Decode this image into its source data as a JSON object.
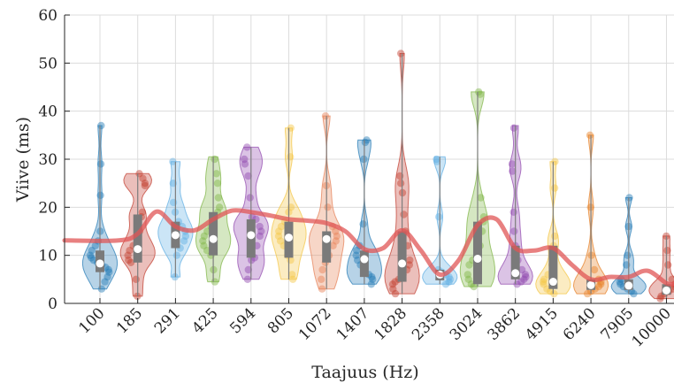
{
  "chart_data": {
    "type": "violin",
    "xlabel": "Taajuus (Hz)",
    "ylabel": "Viive (ms)",
    "ylim": [
      0,
      60
    ],
    "yticks": [
      0,
      10,
      20,
      30,
      40,
      50,
      60
    ],
    "grid": true,
    "categories": [
      "100",
      "185",
      "291",
      "425",
      "594",
      "805",
      "1072",
      "1407",
      "1828",
      "2358",
      "3024",
      "3862",
      "4915",
      "6240",
      "7905",
      "10000"
    ],
    "colors": [
      "#1f77b4",
      "#c0392b",
      "#5dade2",
      "#7cb342",
      "#8e44ad",
      "#f4c542",
      "#e67e52",
      "#1f77b4",
      "#c0392b",
      "#5dade2",
      "#7cb342",
      "#8e44ad",
      "#f4c542",
      "#e67e22",
      "#1f77b4",
      "#c0392b"
    ],
    "median_curve_color": "#e05555",
    "series": [
      {
        "min": 3,
        "q1": 6.5,
        "median": 8.3,
        "q3": 11,
        "max": 37,
        "points": [
          3,
          4.5,
          5.5,
          6.5,
          7,
          7.5,
          8,
          8.5,
          9,
          9.5,
          10,
          11,
          12,
          13,
          15,
          22.5,
          29,
          37
        ]
      },
      {
        "min": 1.5,
        "q1": 8.5,
        "median": 11.3,
        "q3": 18.5,
        "max": 27,
        "points": [
          1.5,
          5,
          8.5,
          9,
          10,
          11,
          12,
          13,
          15,
          18,
          19,
          24.5,
          25,
          26,
          27
        ]
      },
      {
        "min": 5.5,
        "q1": 11.5,
        "median": 14.2,
        "q3": 17,
        "max": 29.5,
        "points": [
          5.5,
          10,
          11.5,
          13,
          14,
          15,
          16,
          17,
          19,
          21,
          25,
          29.5
        ]
      },
      {
        "min": 4.5,
        "q1": 10,
        "median": 13.4,
        "q3": 19,
        "max": 30.5,
        "points": [
          4.5,
          7,
          10,
          11,
          12,
          13,
          14,
          15,
          16,
          18,
          19,
          20,
          22,
          25,
          27,
          30
        ]
      },
      {
        "min": 5,
        "q1": 9.5,
        "median": 14.2,
        "q3": 17.5,
        "max": 32.5,
        "points": [
          5,
          7,
          9,
          9.5,
          12,
          14,
          15,
          16,
          17.5,
          18,
          22,
          26.5,
          29,
          30,
          32.5
        ]
      },
      {
        "min": 5,
        "q1": 9.5,
        "median": 13.7,
        "q3": 17,
        "max": 36.5,
        "points": [
          5,
          6,
          9,
          10,
          12,
          13,
          14,
          15,
          16,
          17,
          19,
          20,
          30.5,
          36.5
        ]
      },
      {
        "min": 3,
        "q1": 8.5,
        "median": 13.4,
        "q3": 15,
        "max": 39,
        "points": [
          3,
          5,
          7,
          8.5,
          10,
          12,
          13,
          14,
          15,
          16,
          20,
          24.5,
          39
        ]
      },
      {
        "min": 4,
        "q1": 5.5,
        "median": 9.2,
        "q3": 11,
        "max": 34,
        "points": [
          4,
          5,
          5.5,
          6,
          7,
          8,
          9,
          10,
          11,
          12,
          16.5,
          30,
          33.5,
          34
        ]
      },
      {
        "min": 2,
        "q1": 4.5,
        "median": 8.3,
        "q3": 15,
        "max": 52,
        "points": [
          2,
          3,
          4,
          4.5,
          5,
          6,
          7,
          8,
          9,
          12,
          15,
          18.5,
          23,
          25,
          26.5,
          52
        ]
      },
      {
        "min": 4,
        "q1": 4.8,
        "median": 6,
        "q3": 7,
        "max": 30.5,
        "points": [
          4,
          4.5,
          5,
          5.5,
          6,
          6.5,
          7,
          18,
          29.5,
          30
        ]
      },
      {
        "min": 3.5,
        "q1": 4,
        "median": 9.3,
        "q3": 17,
        "max": 44,
        "points": [
          3.5,
          4,
          5,
          6,
          8,
          9,
          10,
          12,
          15,
          17,
          18,
          22,
          43.5,
          44
        ]
      },
      {
        "min": 4,
        "q1": 5,
        "median": 6.3,
        "q3": 12,
        "max": 37,
        "points": [
          4,
          4.5,
          5,
          5.5,
          6,
          7,
          9,
          12,
          15,
          19,
          27.5,
          29,
          36.5
        ]
      },
      {
        "min": 2,
        "q1": 3,
        "median": 4.5,
        "q3": 12,
        "max": 29.5,
        "points": [
          2,
          2.5,
          3,
          4,
          4.5,
          5,
          6,
          8,
          12,
          14,
          24,
          29.5
        ]
      },
      {
        "min": 2,
        "q1": 2.8,
        "median": 3.8,
        "q3": 5,
        "max": 35,
        "points": [
          2,
          2.5,
          3,
          3.5,
          4,
          4.5,
          5,
          7,
          10,
          20,
          35
        ]
      },
      {
        "min": 2,
        "q1": 2.8,
        "median": 3.7,
        "q3": 5,
        "max": 22,
        "points": [
          2,
          2.5,
          3,
          3.5,
          4,
          4.5,
          5,
          8,
          10,
          16,
          22
        ]
      },
      {
        "min": 1,
        "q1": 1.8,
        "median": 2.7,
        "q3": 4,
        "max": 14,
        "points": [
          1,
          1.5,
          2,
          2.5,
          3,
          3.5,
          4,
          5,
          8,
          11,
          14
        ]
      }
    ],
    "median_curve": [
      [
        0,
        13.1
      ],
      [
        0.5,
        13.1
      ],
      [
        1,
        14.5
      ],
      [
        1.5,
        19.1
      ],
      [
        2,
        16
      ],
      [
        2.5,
        15.2
      ],
      [
        3,
        17.5
      ],
      [
        3.5,
        19.3
      ],
      [
        4,
        19
      ],
      [
        4.5,
        18.3
      ],
      [
        5,
        17.5
      ],
      [
        5.5,
        17.2
      ],
      [
        6,
        16.7
      ],
      [
        6.5,
        15
      ],
      [
        7,
        11.3
      ],
      [
        7.5,
        11.5
      ],
      [
        8,
        15.2
      ],
      [
        8.5,
        11
      ],
      [
        9,
        6
      ],
      [
        9.5,
        9
      ],
      [
        10,
        16.3
      ],
      [
        10.5,
        17.5
      ],
      [
        11,
        11.5
      ],
      [
        11.5,
        11
      ],
      [
        12,
        11.5
      ],
      [
        12.5,
        8
      ],
      [
        13,
        5
      ],
      [
        13.5,
        5.5
      ],
      [
        14,
        5.5
      ],
      [
        14.5,
        6.8
      ],
      [
        15,
        4.2
      ],
      [
        15.8,
        4.1
      ]
    ]
  }
}
